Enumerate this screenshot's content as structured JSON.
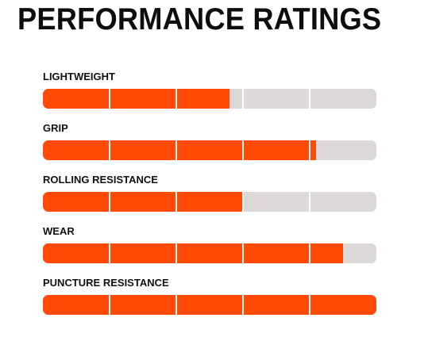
{
  "title": "PERFORMANCE RATINGS",
  "colors": {
    "filled": "#ff4b07",
    "track": "#dcd8d8",
    "divider": "#ffffff",
    "text": "#0d0d0d"
  },
  "chart_data": {
    "type": "bar",
    "orientation": "horizontal",
    "scale_max": 5,
    "segments": 5,
    "categories": [
      "LIGHTWEIGHT",
      "GRIP",
      "ROLLING RESISTANCE",
      "WEAR",
      "PUNCTURE RESISTANCE"
    ],
    "values": [
      2.8,
      4.1,
      3,
      4.5,
      5
    ],
    "title": "PERFORMANCE RATINGS",
    "grid": false,
    "legend": "none"
  }
}
